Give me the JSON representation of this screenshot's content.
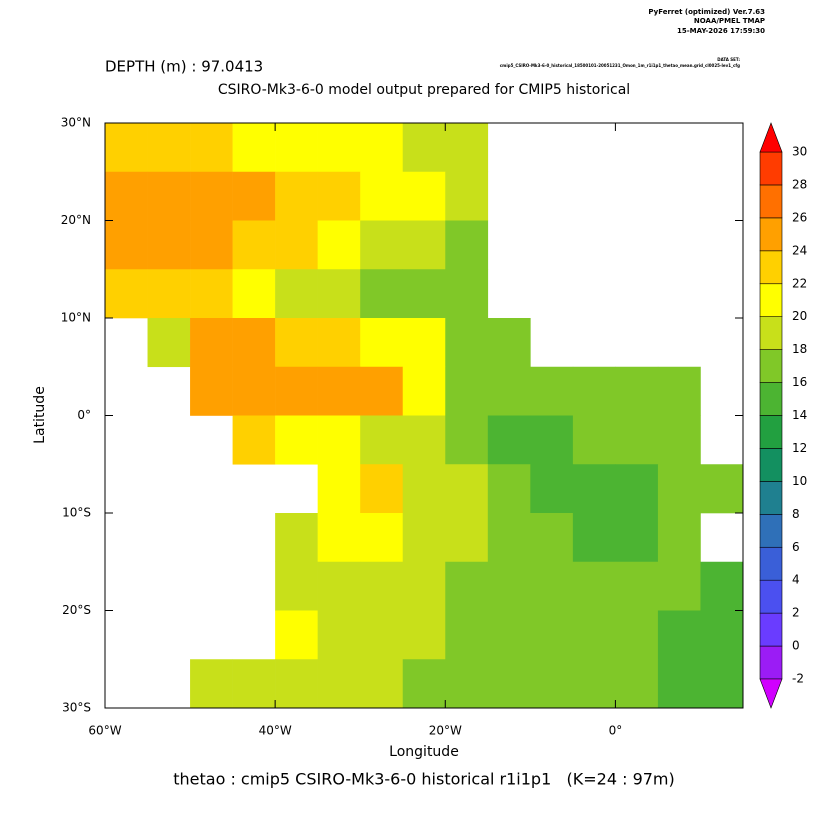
{
  "chart_data": {
    "type": "heatmap",
    "header": [
      "PyFerret (optimized) Ver.7.63",
      "NOAA/PMEL TMAP",
      "15-MAY-2026 17:59:30"
    ],
    "dataset_label": "DATA SET:",
    "dataset": "cmip5_CSIRO-Mk3-6-0_historical_18500101-20051231_Omon_1m_r1i1p1_thetao_mean.grid_cl0025-lev1_cfg",
    "subtitle": "DEPTH (m) : 97.0413",
    "title": "CSIRO-Mk3-6-0 model output prepared for CMIP5 historical",
    "x_label": "Longitude",
    "y_label": "Latitude",
    "caption": "thetao : cmip5 CSIRO-Mk3-6-0 historical r1i1p1   (K=24 : 97m)",
    "x": [
      -57.5,
      -52.5,
      -47.5,
      -42.5,
      -37.5,
      -32.5,
      -27.5,
      -22.5,
      -17.5,
      -12.5,
      -7.5,
      -2.5,
      2.5,
      7.5,
      12.5
    ],
    "y": [
      27.5,
      22.5,
      17.5,
      12.5,
      7.5,
      2.5,
      -2.5,
      -7.5,
      -12.5,
      -17.5,
      -22.5,
      -27.5
    ],
    "values": [
      [
        22,
        22,
        22,
        21,
        21,
        20,
        20,
        19,
        19,
        null,
        null,
        null,
        null,
        null,
        null
      ],
      [
        25,
        25,
        25,
        24,
        23,
        22,
        21,
        20,
        18,
        null,
        null,
        null,
        null,
        null,
        null
      ],
      [
        25,
        24,
        24,
        23,
        22,
        21,
        19,
        18,
        17,
        null,
        null,
        null,
        null,
        null,
        null
      ],
      [
        23,
        23,
        22,
        20,
        19,
        18,
        16,
        17,
        17,
        null,
        null,
        null,
        null,
        null,
        null
      ],
      [
        null,
        19,
        25,
        24,
        22,
        22,
        21,
        20,
        17,
        16,
        null,
        null,
        null,
        null,
        null
      ],
      [
        null,
        null,
        24,
        25,
        25,
        25,
        24,
        21,
        17,
        16,
        16,
        17,
        17,
        17,
        null
      ],
      [
        null,
        null,
        null,
        23,
        21,
        20,
        19,
        19,
        17,
        15,
        15,
        16,
        16,
        17,
        null
      ],
      [
        null,
        null,
        null,
        null,
        null,
        20,
        22,
        19,
        18,
        16,
        14,
        14,
        15,
        16,
        17
      ],
      [
        null,
        null,
        null,
        null,
        18,
        20,
        20,
        19,
        18,
        17,
        16,
        15,
        15,
        16,
        null
      ],
      [
        null,
        null,
        null,
        null,
        18,
        19,
        19,
        18,
        17,
        17,
        17,
        16,
        16,
        16,
        15
      ],
      [
        null,
        null,
        null,
        null,
        20,
        19,
        18,
        18,
        17,
        16,
        16,
        16,
        16,
        15,
        14
      ],
      [
        null,
        null,
        18,
        19,
        19,
        18,
        18,
        17,
        17,
        17,
        16,
        16,
        16,
        15,
        14
      ]
    ],
    "xlim": [
      -60,
      15
    ],
    "ylim": [
      -30,
      30
    ],
    "xticks": [
      {
        "value": -60,
        "label": "60°W"
      },
      {
        "value": -40,
        "label": "40°W"
      },
      {
        "value": -20,
        "label": "20°W"
      },
      {
        "value": 0,
        "label": "0°"
      }
    ],
    "yticks": [
      {
        "value": 30,
        "label": "30°N"
      },
      {
        "value": 20,
        "label": "20°N"
      },
      {
        "value": 10,
        "label": "10°N"
      },
      {
        "value": 0,
        "label": "0°"
      },
      {
        "value": -10,
        "label": "10°S"
      },
      {
        "value": -20,
        "label": "20°S"
      },
      {
        "value": -30,
        "label": "30°S"
      }
    ],
    "colorbar": {
      "levels": [
        -2,
        0,
        2,
        4,
        6,
        8,
        10,
        12,
        14,
        16,
        18,
        20,
        22,
        24,
        26,
        28,
        30
      ],
      "colors": [
        "#9b1cf5",
        "#6a3cff",
        "#4b50f0",
        "#3a5fd8",
        "#2f70b8",
        "#1f8090",
        "#139060",
        "#22a040",
        "#4cb432",
        "#80c828",
        "#c8e01a",
        "#ffff00",
        "#ffd000",
        "#ffa000",
        "#ff7000",
        "#ff3c00"
      ],
      "under_color": "#d000ff",
      "over_color": "#ff0000"
    }
  }
}
